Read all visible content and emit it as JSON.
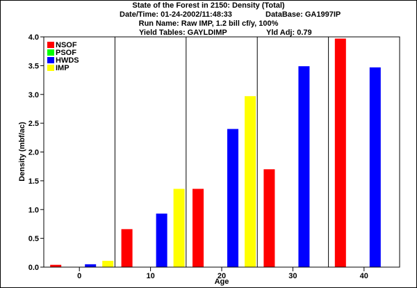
{
  "chart_data": {
    "type": "bar",
    "title": "State of the Forest in 2150: Density (Total)",
    "datetime_label": "Date/Time: 01-24-2002/11:48:33",
    "database_label": "DataBase: GA1997IP",
    "run_name_label": "Run Name: Raw IMP, 1.2 bill cf/y, 100%",
    "yield_tables_label": "Yield Tables: GAYLDIMP",
    "yld_adj_label": "Yld Adj: 0.79",
    "xlabel": "Age",
    "ylabel": "Density (mbf/ac)",
    "ylim": [
      0,
      4.0
    ],
    "yticks": [
      "0.0",
      "0.5",
      "1.0",
      "1.5",
      "2.0",
      "2.5",
      "3.0",
      "3.5",
      "4.0"
    ],
    "categories": [
      "0",
      "10",
      "20",
      "30",
      "40"
    ],
    "legend_position": "top-left",
    "grid": "vertical category separators",
    "series": [
      {
        "name": "NSOF",
        "color": "#ff0000",
        "values": [
          0.04,
          0.66,
          1.36,
          1.7,
          3.97
        ]
      },
      {
        "name": "PSOF",
        "color": "#00ff00",
        "values": [
          0,
          0,
          0,
          0,
          0
        ]
      },
      {
        "name": "HWDS",
        "color": "#0000ff",
        "values": [
          0.05,
          0.93,
          2.4,
          3.49,
          3.47
        ]
      },
      {
        "name": "IMP",
        "color": "#ffff00",
        "values": [
          0.11,
          1.36,
          2.97,
          0,
          0
        ]
      }
    ]
  }
}
